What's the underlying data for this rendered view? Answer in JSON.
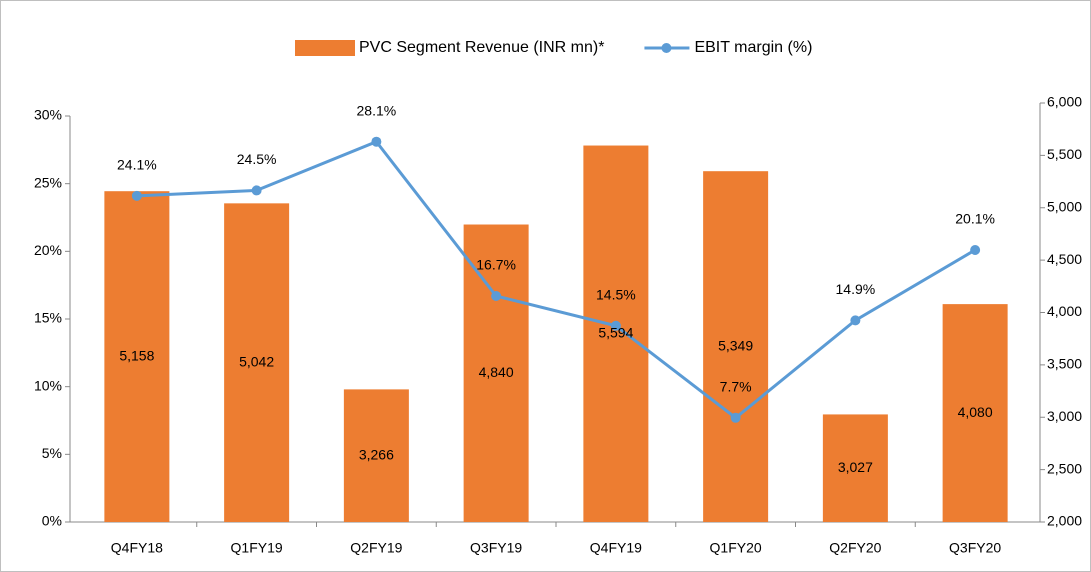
{
  "chart_data": {
    "type": "combo",
    "categories": [
      "Q4FY18",
      "Q1FY19",
      "Q2FY19",
      "Q3FY19",
      "Q4FY19",
      "Q1FY20",
      "Q2FY20",
      "Q3FY20"
    ],
    "series": [
      {
        "name": "PVC Segment Revenue (INR mn)*",
        "type": "bar",
        "axis": "y2",
        "color": "#ed7d31",
        "values": [
          5158,
          5042,
          3266,
          4840,
          5594,
          5349,
          3027,
          4080
        ],
        "value_labels": [
          "5,158",
          "5,042",
          "3,266",
          "4,840",
          "5,594",
          "5,349",
          "3,027",
          "4,080"
        ]
      },
      {
        "name": "EBIT margin (%)",
        "type": "line",
        "axis": "y",
        "color": "#5b9bd5",
        "values": [
          24.1,
          24.5,
          28.1,
          16.7,
          14.5,
          7.7,
          14.9,
          20.1
        ],
        "value_labels": [
          "24.1%",
          "24.5%",
          "28.1%",
          "16.7%",
          "14.5%",
          "7.7%",
          "14.9%",
          "20.1%"
        ]
      }
    ],
    "ylim": [
      0,
      30
    ],
    "yticks": [
      {
        "value": 0,
        "label": "0%"
      },
      {
        "value": 5,
        "label": "5%"
      },
      {
        "value": 10,
        "label": "10%"
      },
      {
        "value": 15,
        "label": "15%"
      },
      {
        "value": 20,
        "label": "20%"
      },
      {
        "value": 25,
        "label": "25%"
      },
      {
        "value": 30,
        "label": "30%"
      }
    ],
    "y2lim": [
      2000,
      6000
    ],
    "y2ticks": [
      {
        "value": 2000,
        "label": "2,000"
      },
      {
        "value": 2500,
        "label": "2,500"
      },
      {
        "value": 3000,
        "label": "3,000"
      },
      {
        "value": 3500,
        "label": "3,500"
      },
      {
        "value": 4000,
        "label": "4,000"
      },
      {
        "value": 4500,
        "label": "4,500"
      },
      {
        "value": 5000,
        "label": "5,000"
      },
      {
        "value": 5500,
        "label": "5,500"
      },
      {
        "value": 6000,
        "label": "6,000"
      }
    ],
    "legend": "top"
  }
}
